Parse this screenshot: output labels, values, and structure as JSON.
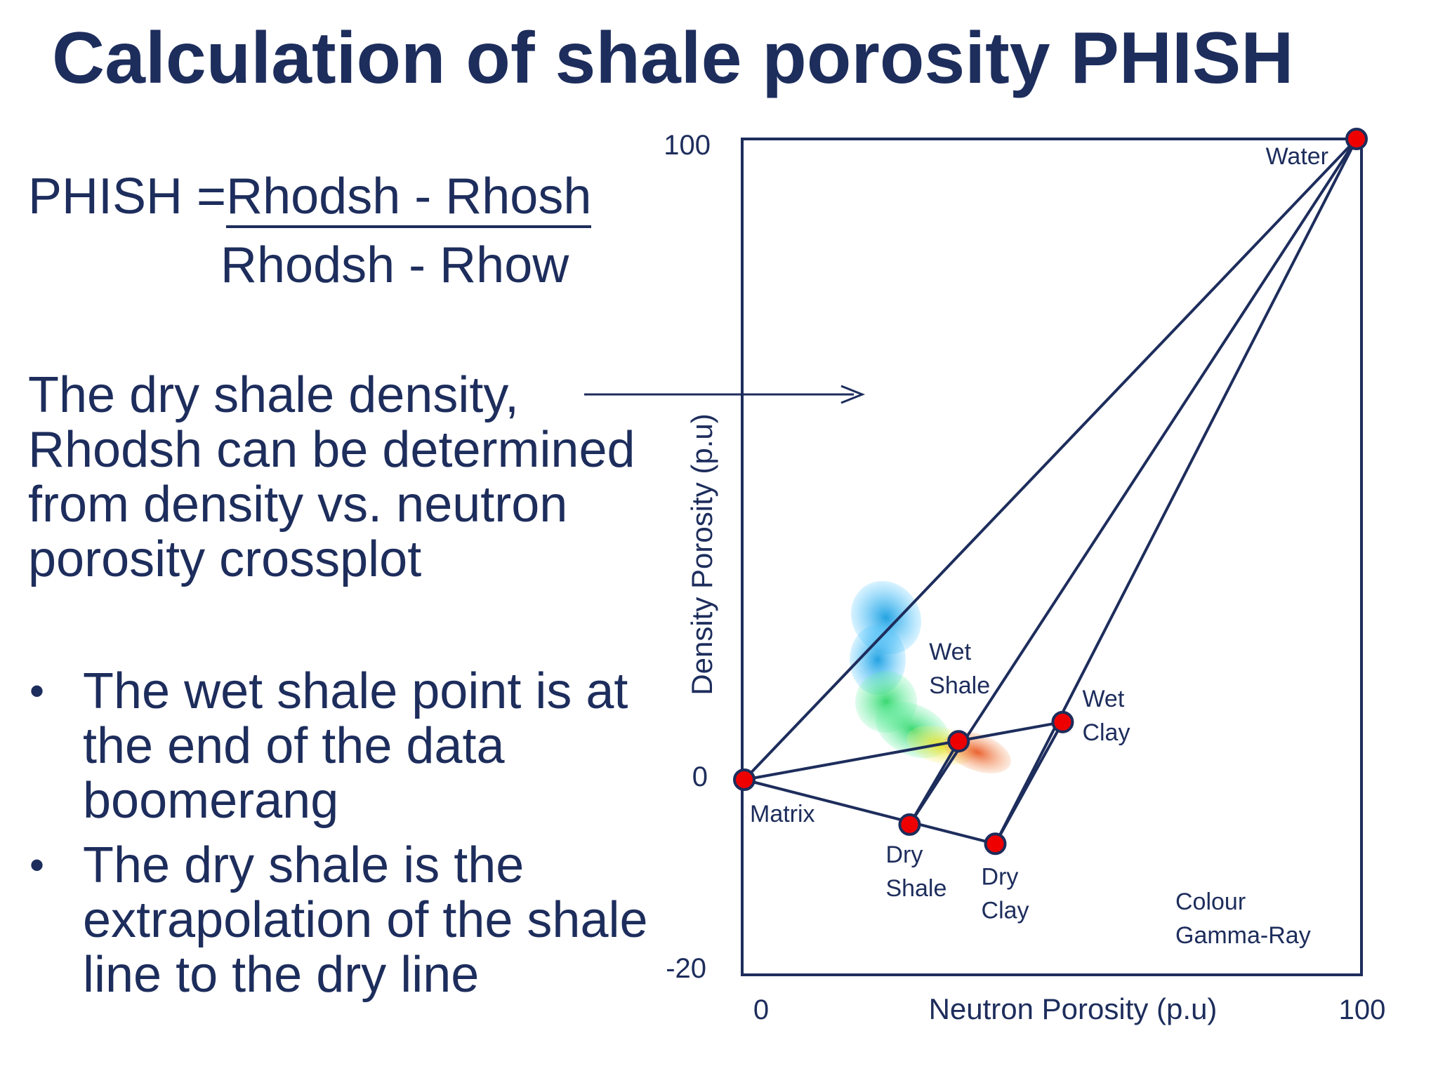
{
  "title": "Calculation of shale porosity PHISH",
  "formula": {
    "lhs": "PHISH = ",
    "numerator": "Rhodsh - Rhosh",
    "denominator": "Rhodsh - Rhow"
  },
  "paragraph": "The dry shale density, Rhodsh can be determined from density vs. neutron porosity crossplot",
  "bullets": [
    "The wet shale point is at the end of the data boomerang",
    "The dry shale is the extrapolation of the shale line to the dry line"
  ],
  "colors": {
    "text": "#1d2d5c",
    "line": "#1d2d5c",
    "point_fill": "#ee0000",
    "point_stroke": "#1d2d5c"
  },
  "chart_data": {
    "type": "scatter",
    "xlabel": "Neutron Porosity (p.u)",
    "ylabel": "Density Porosity (p.u)",
    "xlim": [
      0,
      100
    ],
    "ylim": [
      -20,
      100
    ],
    "x_ticks": [
      "0",
      "100"
    ],
    "y_ticks": [
      "100",
      "0",
      "-20"
    ],
    "note_lines": [
      "Colour",
      "Gamma-Ray"
    ],
    "points": [
      {
        "id": "matrix",
        "label": [
          "Matrix"
        ],
        "x": 0,
        "y": 0
      },
      {
        "id": "water",
        "label": [
          "Water"
        ],
        "x": 100,
        "y": 100
      },
      {
        "id": "wet-shale",
        "label": [
          "Wet",
          "Shale"
        ],
        "x": 35,
        "y": 6
      },
      {
        "id": "wet-clay",
        "label": [
          "Wet",
          "Clay"
        ],
        "x": 52,
        "y": 9
      },
      {
        "id": "dry-shale",
        "label": [
          "Dry",
          "Shale"
        ],
        "x": 27,
        "y": -7
      },
      {
        "id": "dry-clay",
        "label": [
          "Dry",
          "Clay"
        ],
        "x": 41,
        "y": -10
      }
    ],
    "lines": [
      [
        "matrix",
        "water"
      ],
      [
        "dry-shale",
        "water"
      ],
      [
        "dry-clay",
        "water"
      ],
      [
        "matrix",
        "wet-clay"
      ],
      [
        "matrix",
        "dry-clay"
      ],
      [
        "dry-shale",
        "wet-shale"
      ],
      [
        "dry-clay",
        "wet-clay"
      ]
    ]
  }
}
